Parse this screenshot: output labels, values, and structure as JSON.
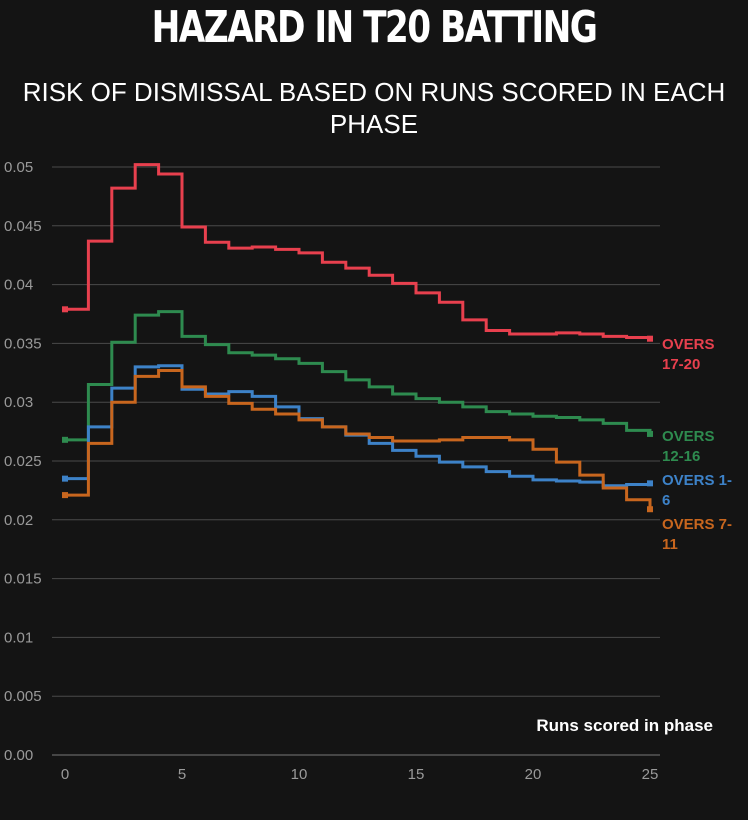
{
  "title": "HAZARD IN T20 BATTING",
  "subtitle": "RISK OF DISMISSAL BASED ON RUNS SCORED IN EACH PHASE",
  "chart_data": {
    "type": "line",
    "step": true,
    "xlabel": "Runs scored in phase",
    "ylabel": "",
    "xlim": [
      0,
      25
    ],
    "ylim": [
      0,
      0.05
    ],
    "xticks": [
      0,
      5,
      10,
      15,
      20,
      25
    ],
    "yticks": [
      0,
      0.005,
      0.01,
      0.015,
      0.02,
      0.025,
      0.03,
      0.035,
      0.04,
      0.045,
      0.05
    ],
    "ytick_labels": [
      "0.00",
      "0.005",
      "0.01",
      "0.015",
      "0.02",
      "0.025",
      "0.03",
      "0.035",
      "0.04",
      "0.045",
      "0.05"
    ],
    "grid": "horizontal",
    "legend": "end-of-line labels",
    "x": [
      0,
      1,
      2,
      3,
      4,
      5,
      6,
      7,
      8,
      9,
      10,
      11,
      12,
      13,
      14,
      15,
      16,
      17,
      18,
      19,
      20,
      21,
      22,
      23,
      24,
      25
    ],
    "series": [
      {
        "name": "OVERS 17-20",
        "color": "#e8404e",
        "values": [
          0.0379,
          0.0437,
          0.0482,
          0.0502,
          0.0494,
          0.0449,
          0.0436,
          0.0431,
          0.0432,
          0.043,
          0.0427,
          0.0419,
          0.0414,
          0.0408,
          0.0401,
          0.0393,
          0.0385,
          0.037,
          0.0361,
          0.0358,
          0.0358,
          0.0359,
          0.0358,
          0.0356,
          0.0355,
          0.0354
        ]
      },
      {
        "name": "OVERS 12-16",
        "color": "#2e8b4f",
        "values": [
          0.0268,
          0.0315,
          0.0351,
          0.0374,
          0.0377,
          0.0356,
          0.0349,
          0.0342,
          0.034,
          0.0337,
          0.0333,
          0.0326,
          0.0319,
          0.0313,
          0.0307,
          0.0303,
          0.03,
          0.0296,
          0.0292,
          0.029,
          0.0288,
          0.0287,
          0.0285,
          0.0282,
          0.0276,
          0.0273
        ]
      },
      {
        "name": "OVERS 1-6",
        "color": "#3d82c8",
        "values": [
          0.0235,
          0.0279,
          0.0312,
          0.033,
          0.0331,
          0.0311,
          0.0307,
          0.0309,
          0.0305,
          0.0296,
          0.0286,
          0.0279,
          0.0272,
          0.0265,
          0.0259,
          0.0254,
          0.0249,
          0.0245,
          0.0241,
          0.0237,
          0.0234,
          0.0233,
          0.0232,
          0.0229,
          0.023,
          0.0231
        ]
      },
      {
        "name": "OVERS 7-11",
        "color": "#c8661e",
        "values": [
          0.0221,
          0.0265,
          0.03,
          0.0322,
          0.0327,
          0.0313,
          0.0305,
          0.0299,
          0.0294,
          0.029,
          0.0285,
          0.0279,
          0.0273,
          0.027,
          0.0267,
          0.0267,
          0.0268,
          0.027,
          0.027,
          0.0268,
          0.026,
          0.0249,
          0.0238,
          0.0227,
          0.0217,
          0.0209
        ]
      }
    ]
  },
  "series_labels": [
    {
      "line1": "OVERS",
      "line2": "17-20"
    },
    {
      "line1": "OVERS",
      "line2": "12-16"
    },
    {
      "line1": "OVERS 1-",
      "line2": "6"
    },
    {
      "line1": "OVERS 7-",
      "line2": "11"
    }
  ]
}
